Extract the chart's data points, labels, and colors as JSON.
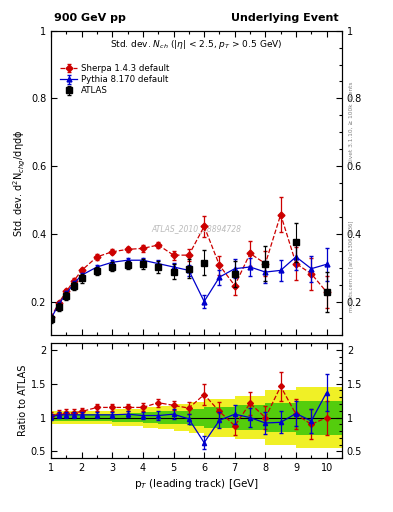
{
  "title_left": "900 GeV pp",
  "title_right": "Underlying Event",
  "ylabel_main": "Std. dev. d$^2$N$_{chg}$/dηdϕ",
  "ylabel_ratio": "Ratio to ATLAS",
  "xlabel": "p$_{T}$ (leading track) [GeV]",
  "watermark": "ATLAS_2010_S8894728",
  "rivet_label": "Rivet 3.1.10, ≥ 100k events",
  "arxiv_label": "mcplots.cern.ch [arXiv:1306.3436]",
  "atlas_x": [
    1.0,
    1.25,
    1.5,
    1.75,
    2.0,
    2.5,
    3.0,
    3.5,
    4.0,
    4.5,
    5.0,
    5.5,
    6.0,
    7.0,
    8.0,
    9.0,
    10.0
  ],
  "atlas_y": [
    0.148,
    0.185,
    0.215,
    0.245,
    0.268,
    0.29,
    0.303,
    0.308,
    0.312,
    0.302,
    0.288,
    0.297,
    0.315,
    0.282,
    0.312,
    0.375,
    0.228
  ],
  "atlas_yerr": [
    0.012,
    0.012,
    0.012,
    0.012,
    0.012,
    0.013,
    0.013,
    0.013,
    0.015,
    0.018,
    0.022,
    0.028,
    0.038,
    0.038,
    0.052,
    0.058,
    0.058
  ],
  "pythia_x": [
    1.0,
    1.25,
    1.5,
    1.75,
    2.0,
    2.5,
    3.0,
    3.5,
    4.0,
    4.5,
    5.0,
    5.5,
    6.0,
    6.5,
    7.0,
    7.5,
    8.0,
    8.5,
    9.0,
    9.5,
    10.0
  ],
  "pythia_y": [
    0.15,
    0.192,
    0.224,
    0.254,
    0.278,
    0.302,
    0.316,
    0.322,
    0.322,
    0.312,
    0.302,
    0.292,
    0.2,
    0.272,
    0.297,
    0.302,
    0.287,
    0.292,
    0.332,
    0.297,
    0.31
  ],
  "pythia_yerr": [
    0.006,
    0.006,
    0.006,
    0.006,
    0.006,
    0.006,
    0.007,
    0.007,
    0.008,
    0.01,
    0.013,
    0.016,
    0.018,
    0.022,
    0.028,
    0.028,
    0.032,
    0.032,
    0.038,
    0.038,
    0.048
  ],
  "sherpa_x": [
    1.0,
    1.25,
    1.5,
    1.75,
    2.0,
    2.5,
    3.0,
    3.5,
    4.0,
    4.5,
    5.0,
    5.5,
    6.0,
    6.5,
    7.0,
    7.5,
    8.0,
    8.5,
    9.0,
    9.5,
    10.0
  ],
  "sherpa_y": [
    0.153,
    0.196,
    0.23,
    0.262,
    0.292,
    0.332,
    0.347,
    0.354,
    0.357,
    0.367,
    0.337,
    0.337,
    0.422,
    0.307,
    0.247,
    0.342,
    0.312,
    0.457,
    0.312,
    0.282,
    0.228
  ],
  "sherpa_yerr": [
    0.006,
    0.006,
    0.006,
    0.006,
    0.006,
    0.008,
    0.008,
    0.008,
    0.01,
    0.01,
    0.013,
    0.018,
    0.032,
    0.028,
    0.028,
    0.038,
    0.038,
    0.052,
    0.048,
    0.048,
    0.048
  ],
  "ratio_pythia_y": [
    1.01,
    1.04,
    1.04,
    1.04,
    1.04,
    1.04,
    1.04,
    1.05,
    1.03,
    1.03,
    1.05,
    0.98,
    0.63,
    0.96,
    1.05,
    1.0,
    0.92,
    0.93,
    1.06,
    0.95,
    1.37
  ],
  "ratio_pythia_yerr": [
    0.04,
    0.04,
    0.04,
    0.04,
    0.04,
    0.04,
    0.04,
    0.04,
    0.05,
    0.06,
    0.07,
    0.08,
    0.1,
    0.12,
    0.14,
    0.14,
    0.16,
    0.16,
    0.18,
    0.18,
    0.28
  ],
  "ratio_sherpa_y": [
    1.03,
    1.06,
    1.07,
    1.07,
    1.09,
    1.15,
    1.15,
    1.15,
    1.15,
    1.22,
    1.18,
    1.14,
    1.34,
    1.09,
    0.88,
    1.21,
    1.0,
    1.46,
    1.05,
    0.9,
    1.0
  ],
  "ratio_sherpa_yerr": [
    0.05,
    0.05,
    0.05,
    0.05,
    0.05,
    0.05,
    0.05,
    0.05,
    0.06,
    0.06,
    0.07,
    0.09,
    0.15,
    0.14,
    0.14,
    0.17,
    0.17,
    0.22,
    0.22,
    0.22,
    0.25
  ],
  "band_x_edges": [
    1.0,
    1.5,
    2.0,
    2.5,
    3.0,
    3.5,
    4.0,
    4.5,
    5.0,
    5.5,
    6.0,
    7.0,
    8.0,
    9.0,
    10.5
  ],
  "band_green": [
    0.05,
    0.05,
    0.05,
    0.05,
    0.06,
    0.07,
    0.08,
    0.09,
    0.1,
    0.12,
    0.15,
    0.18,
    0.22,
    0.25
  ],
  "band_yellow": [
    0.1,
    0.1,
    0.1,
    0.1,
    0.12,
    0.13,
    0.15,
    0.17,
    0.2,
    0.23,
    0.28,
    0.32,
    0.4,
    0.45
  ],
  "main_ylim": [
    0.1,
    1.0
  ],
  "ratio_ylim": [
    0.4,
    2.1
  ],
  "xlim": [
    1.0,
    10.5
  ],
  "color_atlas": "#000000",
  "color_pythia": "#0000cc",
  "color_sherpa": "#cc0000",
  "color_green": "#00bb00",
  "color_yellow": "#eeee00",
  "bg_color": "#ffffff"
}
